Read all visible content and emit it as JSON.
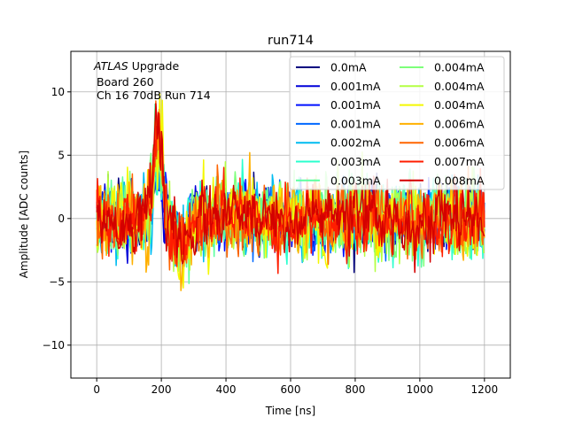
{
  "chart_data": {
    "type": "line",
    "title": "run714",
    "xlabel": "Time [ns]",
    "ylabel": "Amplitude [ADC counts]",
    "xlim": [
      -80,
      1280
    ],
    "ylim": [
      -12.6,
      13.2
    ],
    "xticks": [
      0,
      200,
      400,
      600,
      800,
      1000,
      1200
    ],
    "yticks": [
      -10,
      -5,
      0,
      5,
      10
    ],
    "xtick_labels": [
      "0",
      "200",
      "400",
      "600",
      "800",
      "1000",
      "1200"
    ],
    "ytick_labels": [
      "−10",
      "−5",
      "0",
      "5",
      "10"
    ],
    "grid": true,
    "legend_position": "upper-right",
    "legend_columns": 2,
    "annotation": {
      "line1_italic": "ATLAS",
      "line1_rest": " Upgrade",
      "line2": "Board 260",
      "line3": "Ch 16 70dB  Run 714"
    },
    "x_range": [
      0,
      1200
    ],
    "sample_count": 480,
    "pulse_center": 190,
    "series": [
      {
        "name": "0.0mA",
        "color": "#00007f",
        "noise_amplitude": 2.3,
        "pulse_amplitude": 3.5
      },
      {
        "name": "0.001mA",
        "color": "#0000d9",
        "noise_amplitude": 2.5,
        "pulse_amplitude": 3.8
      },
      {
        "name": "0.001mA",
        "color": "#0010ff",
        "noise_amplitude": 2.5,
        "pulse_amplitude": 4.0
      },
      {
        "name": "0.001mA",
        "color": "#0068ff",
        "noise_amplitude": 2.6,
        "pulse_amplitude": 4.2
      },
      {
        "name": "0.002mA",
        "color": "#00bcf0",
        "noise_amplitude": 2.7,
        "pulse_amplitude": 4.5
      },
      {
        "name": "0.003mA",
        "color": "#29ffce",
        "noise_amplitude": 2.7,
        "pulse_amplitude": 4.8
      },
      {
        "name": "0.003mA",
        "color": "#5cffa0",
        "noise_amplitude": 2.8,
        "pulse_amplitude": 5.0
      },
      {
        "name": "0.004mA",
        "color": "#7dff7a",
        "noise_amplitude": 2.9,
        "pulse_amplitude": 5.2
      },
      {
        "name": "0.004mA",
        "color": "#b4ff43",
        "noise_amplitude": 3.2,
        "pulse_amplitude": 5.5
      },
      {
        "name": "0.004mA",
        "color": "#f4f802",
        "noise_amplitude": 2.9,
        "pulse_amplitude": 5.8
      },
      {
        "name": "0.006mA",
        "color": "#ffb000",
        "noise_amplitude": 2.8,
        "pulse_amplitude": 6.2
      },
      {
        "name": "0.006mA",
        "color": "#ff6500",
        "noise_amplitude": 2.8,
        "pulse_amplitude": 6.5
      },
      {
        "name": "0.007mA",
        "color": "#ff1d00",
        "noise_amplitude": 2.7,
        "pulse_amplitude": 6.8
      },
      {
        "name": "0.008mA",
        "color": "#d40000",
        "noise_amplitude": 2.6,
        "pulse_amplitude": 7.2
      }
    ]
  }
}
